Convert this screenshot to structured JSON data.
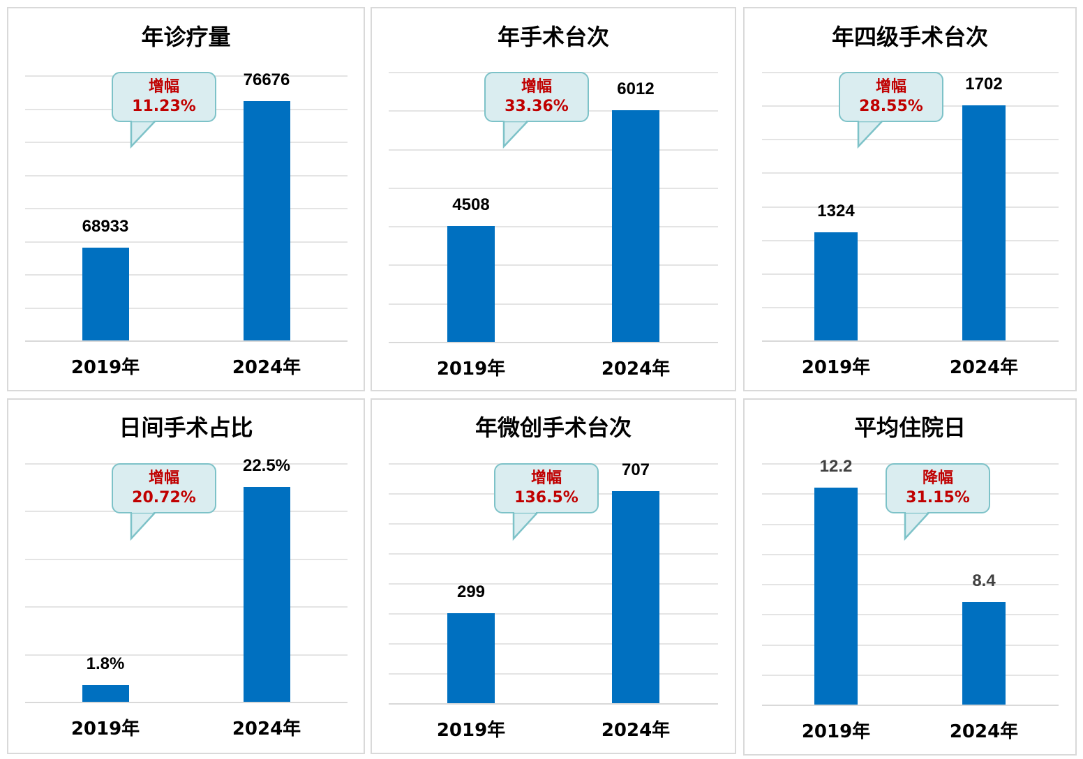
{
  "colors": {
    "bar": "#0070c0",
    "callout_fill": "#daedf0",
    "callout_border": "#7dc2c8",
    "callout_text": "#c00000",
    "grid": "#e4e4e4"
  },
  "chart_data": [
    {
      "type": "bar",
      "title": "年诊疗量",
      "categories": [
        "2019年",
        "2024年"
      ],
      "values": [
        68933,
        76676
      ],
      "value_labels": [
        "68933",
        "76676"
      ],
      "annotation": {
        "label": "增幅",
        "value": "11.23%"
      },
      "grid": true
    },
    {
      "type": "bar",
      "title": "年手术台次",
      "categories": [
        "2019年",
        "2024年"
      ],
      "values": [
        4508,
        6012
      ],
      "value_labels": [
        "4508",
        "6012"
      ],
      "annotation": {
        "label": "增幅",
        "value": "33.36%"
      },
      "grid": true
    },
    {
      "type": "bar",
      "title": "年四级手术台次",
      "categories": [
        "2019年",
        "2024年"
      ],
      "values": [
        1324,
        1702
      ],
      "value_labels": [
        "1324",
        "1702"
      ],
      "annotation": {
        "label": "增幅",
        "value": "28.55%"
      },
      "grid": true
    },
    {
      "type": "bar",
      "title": "日间手术占比",
      "categories": [
        "2019年",
        "2024年"
      ],
      "values": [
        1.8,
        22.5
      ],
      "value_labels": [
        "1.8%",
        "22.5%"
      ],
      "annotation": {
        "label": "增幅",
        "value": "20.72%"
      },
      "grid": true
    },
    {
      "type": "bar",
      "title": "年微创手术台次",
      "categories": [
        "2019年",
        "2024年"
      ],
      "values": [
        299,
        707
      ],
      "value_labels": [
        "299",
        "707"
      ],
      "annotation": {
        "label": "增幅",
        "value": "136.5%"
      },
      "grid": true
    },
    {
      "type": "bar",
      "title": "平均住院日",
      "categories": [
        "2019年",
        "2024年"
      ],
      "values": [
        12.2,
        8.4
      ],
      "value_labels": [
        "12.2",
        "8.4"
      ],
      "annotation": {
        "label": "降幅",
        "value": "31.15%"
      },
      "grid": true
    }
  ]
}
